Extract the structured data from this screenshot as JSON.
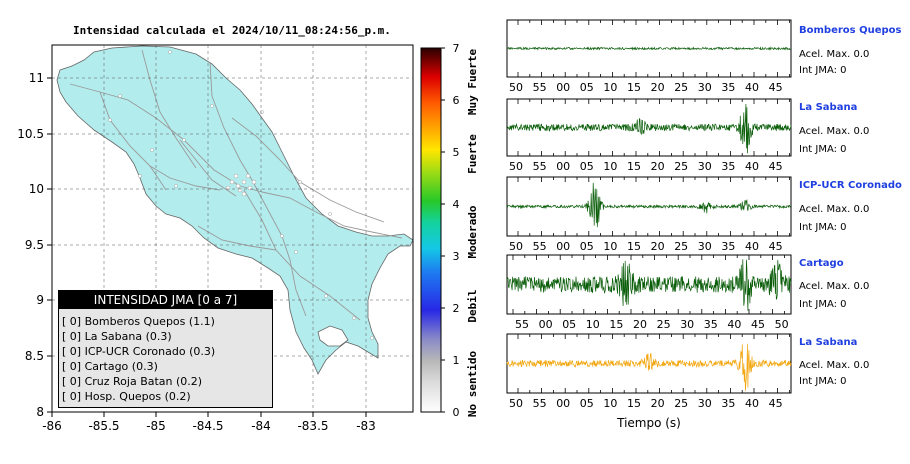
{
  "map": {
    "title": "Intensidad calculada el 2024/10/11_08:24:56_p.m.",
    "lon_ticks": [
      "-86",
      "-85.5",
      "-85",
      "-84.5",
      "-84",
      "-83.5",
      "-83"
    ],
    "lat_ticks": [
      "11",
      "10.5",
      "10",
      "9.5",
      "9",
      "8.5",
      "8"
    ],
    "land_color": "#b3eced",
    "legend": {
      "title": "INTENSIDAD JMA [0 a 7]",
      "rows": [
        "[ 0] Bomberos Quepos (1.1)",
        "[ 0] La Sabana (0.3)",
        "[ 0] ICP-UCR Coronado (0.3)",
        "[ 0] Cartago (0.3)",
        "[ 0] Cruz Roja Batan (0.2)",
        "[ 0] Hosp. Quepos (0.2)"
      ]
    }
  },
  "colorbar": {
    "ticks": [
      "0",
      "1",
      "2",
      "3",
      "4",
      "5",
      "6",
      "7"
    ],
    "labels": [
      "No sentido",
      "Debil",
      "Moderado",
      "Fuerte",
      "Muy Fuerte"
    ]
  },
  "seismograms": {
    "xlabel": "Tiempo (s)",
    "stations": [
      {
        "name": "Bomberos Quepos",
        "acel": "Acel. Max. 0.0",
        "int": "Int JMA: 0",
        "color": "#0a5e0a",
        "amp": 0.04,
        "seed": 11,
        "bursts": [],
        "ticks": [
          "50",
          "55",
          "00",
          "05",
          "10",
          "15",
          "20",
          "25",
          "30",
          "35",
          "40",
          "45"
        ],
        "offset": 0
      },
      {
        "name": "La Sabana",
        "acel": "Acel. Max. 0.0",
        "int": "Int JMA: 0",
        "color": "#0a5e0a",
        "amp": 0.13,
        "seed": 23,
        "bursts": [
          [
            0.47,
            0.25
          ],
          [
            0.84,
            0.95
          ]
        ],
        "ticks": [
          "50",
          "55",
          "00",
          "05",
          "10",
          "15",
          "20",
          "25",
          "30",
          "35",
          "40",
          "45"
        ],
        "offset": 0
      },
      {
        "name": "ICP-UCR Coronado",
        "acel": "Acel. Max. 0.0",
        "int": "Int JMA: 0",
        "color": "#0a5e0a",
        "amp": 0.05,
        "seed": 37,
        "bursts": [
          [
            0.31,
            0.95
          ],
          [
            0.7,
            0.22
          ],
          [
            0.84,
            0.2
          ]
        ],
        "ticks": [
          "50",
          "55",
          "00",
          "05",
          "10",
          "15",
          "20",
          "25",
          "30",
          "35",
          "40",
          "45"
        ],
        "offset": 0
      },
      {
        "name": "Cartago",
        "acel": "Acel. Max. 0.0",
        "int": "Int JMA: 0",
        "color": "#0a5e0a",
        "amp": 0.3,
        "seed": 53,
        "bursts": [
          [
            0.42,
            0.85
          ],
          [
            0.84,
            0.95
          ],
          [
            0.95,
            0.7
          ]
        ],
        "ticks": [
          "55",
          "00",
          "05",
          "10",
          "15",
          "20",
          "25",
          "30",
          "35",
          "40",
          "45",
          "50"
        ],
        "offset": 1
      },
      {
        "name": "La Sabana",
        "acel": "Acel. Max. 0.0",
        "int": "Int JMA: 0",
        "color": "#f2a50c",
        "amp": 0.12,
        "seed": 71,
        "bursts": [
          [
            0.5,
            0.3
          ],
          [
            0.84,
            0.95
          ]
        ],
        "ticks": [
          "50",
          "55",
          "00",
          "05",
          "10",
          "15",
          "20",
          "25",
          "30",
          "35",
          "40",
          "45"
        ],
        "offset": 0
      }
    ]
  }
}
